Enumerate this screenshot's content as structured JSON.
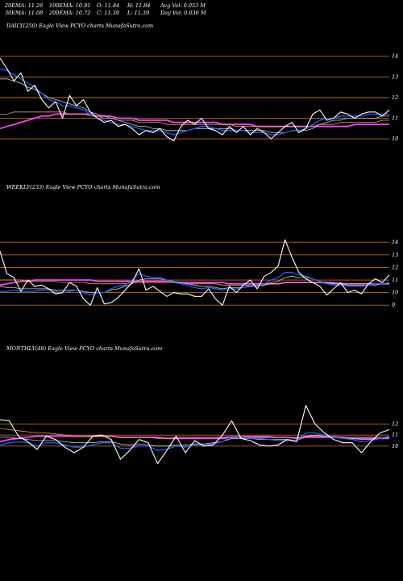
{
  "header": {
    "row1": [
      "20EMA: 11.26",
      "100EMA: 10.91",
      "O: 11.84",
      "H: 11.84",
      "Avg Vol: 0.053 M"
    ],
    "row2": [
      "30EMA: 11.08",
      "200EMA: 10.72",
      "C: 11.39",
      "L: 11.39",
      "Day Vol: 0.036  M"
    ]
  },
  "panels": {
    "daily": {
      "title": "DAILY(250) Eagle  View  PCYO charts MunafaSutra.com"
    },
    "weekly": {
      "title": "WEEKLY(233) Eagle  View  PCYO charts MunafaSutra.com"
    },
    "monthly": {
      "title": "MONTHLY(48) Eagle  View  PCYO charts MunafaSutra.com"
    }
  },
  "colors": {
    "background": "#000000",
    "price": "#ffffff",
    "ema20": "#1f5fff",
    "ema30": "#c8c8c8",
    "ema100": "#e0a060",
    "ema200": "#ff40ff",
    "grid": "#b86a1a"
  },
  "chart_data": [
    {
      "type": "line",
      "name": "daily",
      "yticks": [
        10,
        11,
        12,
        13,
        14
      ],
      "ylim": [
        9.3,
        14.3
      ],
      "x": [
        0,
        3,
        6,
        9,
        12,
        15,
        18,
        21,
        24,
        27,
        30,
        33,
        36,
        39,
        42,
        45,
        48,
        51,
        54,
        57,
        60,
        63,
        66,
        69,
        72,
        75,
        78,
        81,
        84,
        87,
        90,
        93,
        96,
        99,
        102,
        105,
        108,
        111,
        114,
        117,
        120,
        123,
        126,
        129,
        132,
        135,
        138,
        141,
        144,
        147,
        150,
        153,
        156,
        159,
        162,
        165,
        168
      ],
      "series": [
        {
          "values": [
            13.9,
            13.4,
            12.8,
            13.2,
            12.3,
            12.6,
            11.9,
            11.5,
            11.8,
            11.0,
            12.1,
            11.6,
            11.9,
            11.3,
            11.0,
            10.8,
            10.9,
            10.6,
            10.7,
            10.5,
            10.2,
            10.4,
            10.3,
            10.5,
            10.1,
            9.9,
            10.6,
            10.9,
            10.7,
            11.0,
            10.5,
            10.4,
            10.2,
            10.6,
            10.3,
            10.6,
            10.2,
            10.5,
            10.3,
            10.0,
            10.3,
            10.6,
            10.8,
            10.3,
            10.5,
            11.2,
            11.4,
            10.9,
            11.0,
            11.3,
            11.2,
            11.0,
            11.2,
            11.3,
            11.3,
            11.1,
            11.4
          ]
        },
        {
          "values": [
            13.4,
            13.3,
            13.1,
            12.9,
            12.7,
            12.5,
            12.2,
            11.9,
            11.8,
            11.6,
            11.6,
            11.5,
            11.4,
            11.2,
            11.0,
            10.9,
            10.8,
            10.7,
            10.7,
            10.6,
            10.5,
            10.4,
            10.4,
            10.4,
            10.3,
            10.2,
            10.3,
            10.4,
            10.5,
            10.6,
            10.6,
            10.5,
            10.4,
            10.4,
            10.4,
            10.4,
            10.3,
            10.3,
            10.3,
            10.2,
            10.2,
            10.3,
            10.4,
            10.4,
            10.5,
            10.7,
            10.9,
            11.0,
            11.0,
            11.1,
            11.1,
            11.1,
            11.1,
            11.2,
            11.2,
            11.2,
            11.2
          ]
        },
        {
          "values": [
            12.9,
            12.9,
            12.8,
            12.7,
            12.5,
            12.4,
            12.2,
            12.0,
            11.9,
            11.8,
            11.7,
            11.6,
            11.5,
            11.3,
            11.2,
            11.1,
            11.0,
            10.9,
            10.8,
            10.7,
            10.6,
            10.6,
            10.5,
            10.5,
            10.4,
            10.4,
            10.4,
            10.4,
            10.5,
            10.5,
            10.5,
            10.5,
            10.5,
            10.5,
            10.4,
            10.4,
            10.4,
            10.4,
            10.4,
            10.3,
            10.3,
            10.3,
            10.4,
            10.4,
            10.4,
            10.5,
            10.7,
            10.8,
            10.9,
            10.9,
            11.0,
            11.0,
            11.0,
            11.0,
            11.0,
            11.1,
            11.1
          ]
        },
        {
          "values": [
            11.2,
            11.2,
            11.3,
            11.3,
            11.3,
            11.3,
            11.3,
            11.3,
            11.3,
            11.3,
            11.2,
            11.2,
            11.2,
            11.1,
            11.1,
            11.0,
            11.0,
            10.9,
            10.9,
            10.9,
            10.8,
            10.8,
            10.8,
            10.8,
            10.7,
            10.7,
            10.7,
            10.7,
            10.7,
            10.7,
            10.7,
            10.7,
            10.7,
            10.7,
            10.6,
            10.6,
            10.6,
            10.6,
            10.6,
            10.6,
            10.6,
            10.6,
            10.6,
            10.6,
            10.6,
            10.6,
            10.7,
            10.7,
            10.7,
            10.8,
            10.8,
            10.8,
            10.8,
            10.8,
            10.8,
            10.9,
            10.9
          ]
        },
        {
          "values": [
            10.5,
            10.6,
            10.7,
            10.8,
            10.9,
            11.0,
            11.1,
            11.1,
            11.2,
            11.2,
            11.2,
            11.2,
            11.2,
            11.2,
            11.1,
            11.1,
            11.1,
            11.0,
            11.0,
            11.0,
            10.9,
            10.9,
            10.9,
            10.9,
            10.9,
            10.8,
            10.8,
            10.8,
            10.8,
            10.8,
            10.8,
            10.8,
            10.7,
            10.7,
            10.7,
            10.7,
            10.7,
            10.6,
            10.6,
            10.6,
            10.6,
            10.6,
            10.6,
            10.6,
            10.6,
            10.6,
            10.6,
            10.6,
            10.6,
            10.6,
            10.6,
            10.7,
            10.7,
            10.7,
            10.7,
            10.7,
            10.7
          ]
        }
      ]
    },
    {
      "type": "line",
      "name": "weekly",
      "yticks": [
        9,
        10,
        11,
        12,
        13,
        14
      ],
      "ylim": [
        8.5,
        14.4
      ],
      "x": [
        0,
        3,
        6,
        9,
        12,
        15,
        18,
        21,
        24,
        27,
        30,
        33,
        36,
        39,
        42,
        45,
        48,
        51,
        54,
        57,
        60,
        63,
        66,
        69,
        72,
        75,
        78,
        81,
        84,
        87,
        90,
        93,
        96,
        99,
        102,
        105,
        108,
        111,
        114,
        117,
        120,
        123,
        126,
        129,
        132,
        135,
        138,
        141,
        144,
        147,
        150,
        153,
        156,
        159,
        162,
        165,
        168
      ],
      "series": [
        {
          "values": [
            13.3,
            11.5,
            11.2,
            10.1,
            11.0,
            10.5,
            10.6,
            10.3,
            9.9,
            10.0,
            10.8,
            10.5,
            9.5,
            9.0,
            10.4,
            9.1,
            9.2,
            9.6,
            10.2,
            10.8,
            11.9,
            10.2,
            10.5,
            10.1,
            9.7,
            10.0,
            9.9,
            9.9,
            9.7,
            9.7,
            10.3,
            9.5,
            9.0,
            10.5,
            10.0,
            10.6,
            11.0,
            10.3,
            11.3,
            11.6,
            12.1,
            14.2,
            12.8,
            11.6,
            11.1,
            10.8,
            10.5,
            9.8,
            10.3,
            10.8,
            10.0,
            10.2,
            9.9,
            10.7,
            11.1,
            10.8,
            11.4
          ]
        },
        {
          "values": [
            10.1,
            10.1,
            10.2,
            10.1,
            10.1,
            10.1,
            10.2,
            10.2,
            10.1,
            10.0,
            10.1,
            10.2,
            10.0,
            9.8,
            10.0,
            10.0,
            10.3,
            10.5,
            10.6,
            11.0,
            11.5,
            11.3,
            11.2,
            11.2,
            11.0,
            10.8,
            10.7,
            10.6,
            10.4,
            10.3,
            10.4,
            10.3,
            10.2,
            10.3,
            10.3,
            10.4,
            10.6,
            10.5,
            10.7,
            11.0,
            11.2,
            11.6,
            11.6,
            11.4,
            11.3,
            11.1,
            10.9,
            10.7,
            10.6,
            10.6,
            10.5,
            10.5,
            10.5,
            10.6,
            10.7,
            10.7,
            10.8
          ]
        },
        {
          "values": [
            10.5,
            10.4,
            10.4,
            10.3,
            10.3,
            10.3,
            10.3,
            10.3,
            10.2,
            10.2,
            10.2,
            10.2,
            10.1,
            10.0,
            10.0,
            10.0,
            10.2,
            10.3,
            10.5,
            10.7,
            11.0,
            11.1,
            11.1,
            11.1,
            11.0,
            10.9,
            10.8,
            10.7,
            10.6,
            10.5,
            10.5,
            10.4,
            10.3,
            10.4,
            10.4,
            10.4,
            10.5,
            10.5,
            10.6,
            10.8,
            10.9,
            11.2,
            11.3,
            11.2,
            11.2,
            11.1,
            10.9,
            10.8,
            10.7,
            10.7,
            10.6,
            10.6,
            10.6,
            10.6,
            10.6,
            10.7,
            10.7
          ]
        },
        {
          "values": [
            11.0,
            11.0,
            11.0,
            11.0,
            10.9,
            10.9,
            10.9,
            10.9,
            10.9,
            10.8,
            10.8,
            10.8,
            10.8,
            10.7,
            10.7,
            10.7,
            10.7,
            10.7,
            10.7,
            10.8,
            10.8,
            10.8,
            10.8,
            10.8,
            10.8,
            10.8,
            10.8,
            10.7,
            10.7,
            10.7,
            10.7,
            10.7,
            10.6,
            10.6,
            10.6,
            10.6,
            10.6,
            10.6,
            10.6,
            10.7,
            10.7,
            10.8,
            10.8,
            10.8,
            10.8,
            10.8,
            10.8,
            10.7,
            10.7,
            10.7,
            10.7,
            10.7,
            10.7,
            10.7,
            10.7,
            10.7,
            10.7
          ]
        },
        {
          "values": [
            10.6,
            10.7,
            10.8,
            10.9,
            10.9,
            11.0,
            11.0,
            11.0,
            11.0,
            11.0,
            11.0,
            11.0,
            11.0,
            11.0,
            10.9,
            10.9,
            10.9,
            10.9,
            10.9,
            10.9,
            10.9,
            10.9,
            10.9,
            10.9,
            10.9,
            10.8,
            10.8,
            10.8,
            10.8,
            10.8,
            10.8,
            10.8,
            10.8,
            10.7,
            10.7,
            10.7,
            10.7,
            10.7,
            10.7,
            10.7,
            10.7,
            10.8,
            10.8,
            10.8,
            10.8,
            10.8,
            10.8,
            10.8,
            10.8,
            10.7,
            10.7,
            10.7,
            10.7,
            10.7,
            10.7,
            10.7,
            10.7
          ]
        }
      ]
    },
    {
      "type": "line",
      "name": "monthly",
      "yticks": [
        10,
        11,
        12
      ],
      "ylim": [
        8.0,
        13.0
      ],
      "x": [
        0,
        4,
        8,
        12,
        16,
        20,
        24,
        28,
        32,
        36,
        40,
        44,
        48,
        52,
        56,
        60,
        64,
        68,
        72,
        76,
        80,
        84,
        88,
        92,
        96,
        100,
        104,
        108,
        112,
        116,
        120,
        124,
        128,
        132,
        136,
        140,
        144,
        148,
        152,
        156,
        160,
        164,
        168
      ],
      "series": [
        {
          "values": [
            12.4,
            12.3,
            10.9,
            10.4,
            9.7,
            10.9,
            10.6,
            9.9,
            9.4,
            9.9,
            10.9,
            11.0,
            10.6,
            8.8,
            9.6,
            10.6,
            10.3,
            8.4,
            9.6,
            10.9,
            9.4,
            10.5,
            10.0,
            10.1,
            11.0,
            12.3,
            10.7,
            10.5,
            10.1,
            10.0,
            10.1,
            10.6,
            10.4,
            13.7,
            12.0,
            11.2,
            10.6,
            10.3,
            10.3,
            9.4,
            10.4,
            11.2,
            11.5
          ]
        },
        {
          "values": [
            10.1,
            10.3,
            10.4,
            10.3,
            10.0,
            10.3,
            10.3,
            10.1,
            9.9,
            9.9,
            10.1,
            10.3,
            10.3,
            9.8,
            9.8,
            10.0,
            10.0,
            9.6,
            9.7,
            10.0,
            9.9,
            10.1,
            10.1,
            10.2,
            10.4,
            10.9,
            10.8,
            10.7,
            10.7,
            10.6,
            10.5,
            10.5,
            10.5,
            11.2,
            11.2,
            11.0,
            10.8,
            10.7,
            10.6,
            10.4,
            10.5,
            10.7,
            10.9
          ]
        },
        {
          "values": [
            10.8,
            10.8,
            10.7,
            10.6,
            10.5,
            10.5,
            10.5,
            10.4,
            10.3,
            10.3,
            10.3,
            10.4,
            10.4,
            10.2,
            10.1,
            10.2,
            10.1,
            10.0,
            10.0,
            10.1,
            10.1,
            10.2,
            10.2,
            10.3,
            10.4,
            10.7,
            10.7,
            10.7,
            10.6,
            10.6,
            10.6,
            10.6,
            10.5,
            10.9,
            11.0,
            10.9,
            10.8,
            10.7,
            10.7,
            10.6,
            10.6,
            10.7,
            10.8
          ]
        },
        {
          "values": [
            11.6,
            11.5,
            11.4,
            11.3,
            11.2,
            11.2,
            11.1,
            11.0,
            10.9,
            10.9,
            10.9,
            10.9,
            10.9,
            10.8,
            10.8,
            10.8,
            10.8,
            10.7,
            10.7,
            10.8,
            10.8,
            10.8,
            10.8,
            10.8,
            10.8,
            10.9,
            10.9,
            10.9,
            10.9,
            10.9,
            10.8,
            10.8,
            10.8,
            10.9,
            10.9,
            10.9,
            10.9,
            10.8,
            10.8,
            10.8,
            10.8,
            10.8,
            10.8
          ]
        },
        {
          "values": [
            10.4,
            10.6,
            10.7,
            10.8,
            10.9,
            10.9,
            10.9,
            10.9,
            10.9,
            10.9,
            10.9,
            10.9,
            10.9,
            10.8,
            10.8,
            10.8,
            10.8,
            10.8,
            10.7,
            10.7,
            10.7,
            10.7,
            10.7,
            10.7,
            10.7,
            10.8,
            10.8,
            10.8,
            10.8,
            10.8,
            10.8,
            10.8,
            10.7,
            10.8,
            10.8,
            10.8,
            10.8,
            10.8,
            10.7,
            10.7,
            10.7,
            10.7,
            10.7
          ]
        }
      ]
    }
  ]
}
